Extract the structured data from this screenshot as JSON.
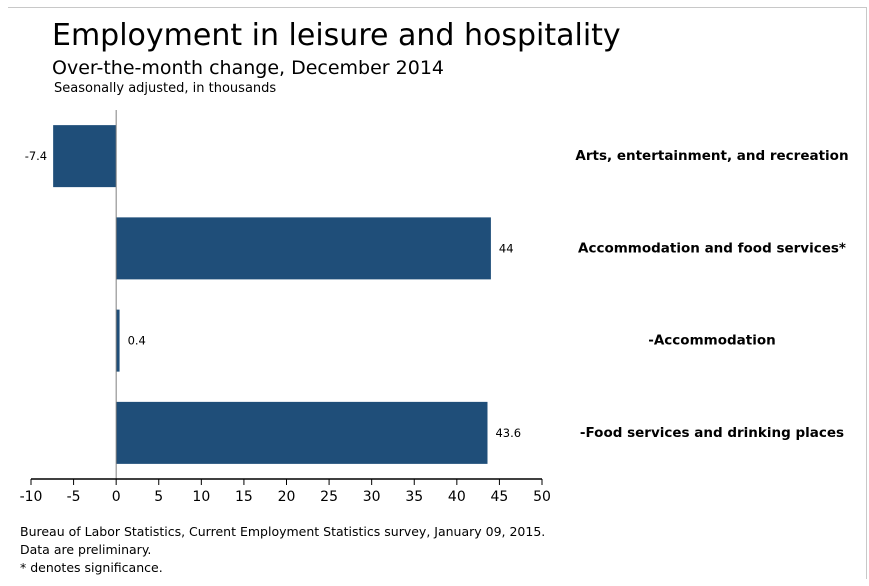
{
  "chart_data": {
    "type": "bar",
    "orientation": "horizontal",
    "title": "Employment in leisure and hospitality",
    "subtitle": "Over-the-month change, December 2014",
    "note": "Seasonally adjusted, in thousands",
    "categories": [
      "Arts, entertainment, and recreation",
      "Accommodation and food services*",
      "-Accommodation",
      "-Food services and drinking places"
    ],
    "values": [
      -7.4,
      44,
      0.4,
      43.6
    ],
    "data_labels": [
      "-7.4",
      "44",
      "0.4",
      "43.6"
    ],
    "xlim": [
      -10,
      50
    ],
    "x_ticks": [
      -10,
      -5,
      0,
      5,
      10,
      15,
      20,
      25,
      30,
      35,
      40,
      45,
      50
    ],
    "bar_color": "#1f4e79",
    "grid": false,
    "legend": "none"
  },
  "footer": {
    "source": "Bureau of Labor Statistics, Current Employment Statistics survey, January 09, 2015.",
    "preliminary": "Data are preliminary.",
    "significance": "* denotes significance."
  }
}
